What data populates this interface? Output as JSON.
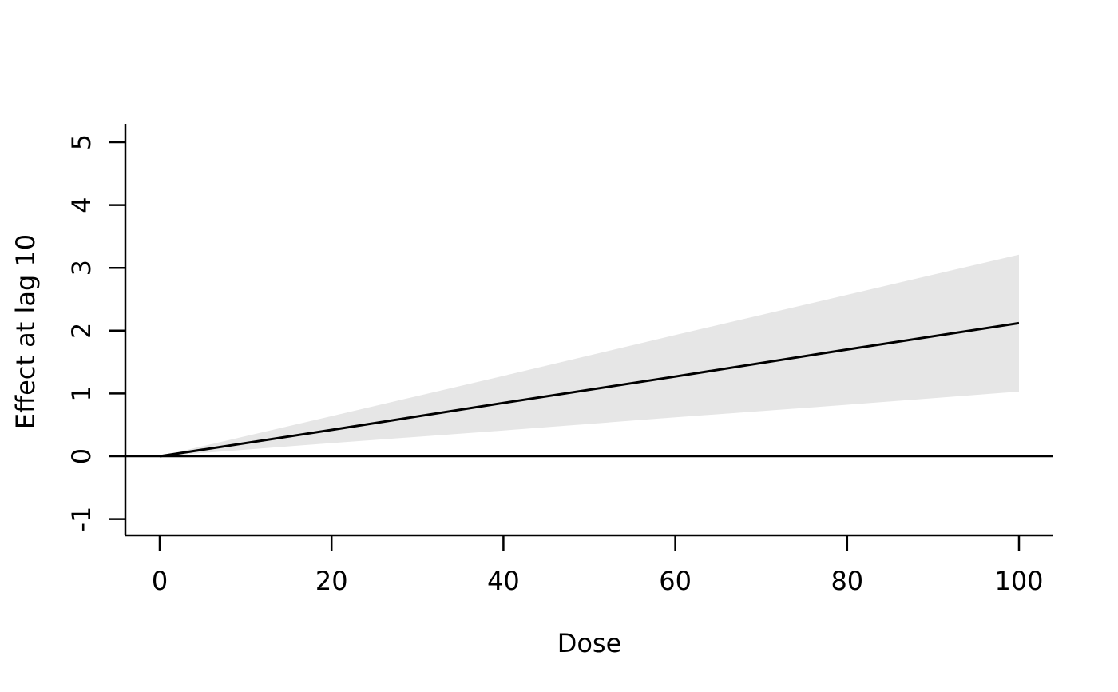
{
  "chart_data": {
    "type": "line",
    "title": "",
    "xlabel": "Dose",
    "ylabel": "Effect at lag 10",
    "x": [
      0,
      20,
      40,
      60,
      80,
      100
    ],
    "series": [
      {
        "name": "estimate",
        "values": [
          0,
          0.42,
          0.85,
          1.27,
          1.7,
          2.12
        ]
      },
      {
        "name": "ci_lower",
        "values": [
          0,
          0.21,
          0.41,
          0.62,
          0.82,
          1.03
        ]
      },
      {
        "name": "ci_upper",
        "values": [
          0,
          0.64,
          1.28,
          1.93,
          2.57,
          3.21
        ]
      }
    ],
    "xticks": [
      0,
      20,
      40,
      60,
      80,
      100
    ],
    "yticks": [
      -1,
      0,
      1,
      2,
      3,
      4,
      5
    ],
    "xlim": [
      0,
      100
    ],
    "ylim": [
      -1,
      5
    ],
    "reference_line_y": 0,
    "grid": false,
    "legend_position": "none",
    "colors": {
      "band": "#e6e6e6",
      "line": "#000000",
      "axis": "#000000",
      "text": "#000000",
      "background": "#ffffff"
    }
  }
}
